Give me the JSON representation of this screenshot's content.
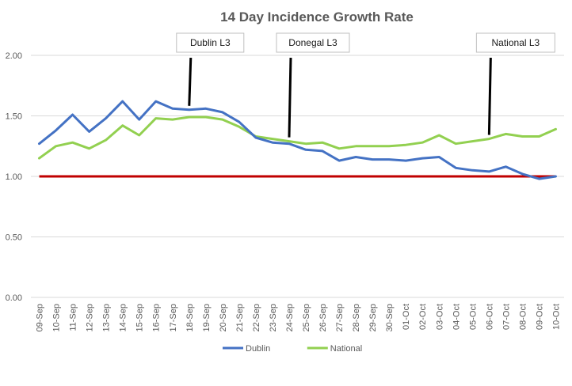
{
  "chart_data": {
    "type": "line",
    "title": "14 Day Incidence Growth Rate",
    "categories": [
      "09-Sep",
      "10-Sep",
      "11-Sep",
      "12-Sep",
      "13-Sep",
      "14-Sep",
      "15-Sep",
      "16-Sep",
      "17-Sep",
      "18-Sep",
      "19-Sep",
      "20-Sep",
      "21-Sep",
      "22-Sep",
      "23-Sep",
      "24-Sep",
      "25-Sep",
      "26-Sep",
      "27-Sep",
      "28-Sep",
      "29-Sep",
      "30-Sep",
      "01-Oct",
      "02-Oct",
      "03-Oct",
      "04-Oct",
      "05-Oct",
      "06-Oct",
      "07-Oct",
      "08-Oct",
      "09-Oct",
      "10-Oct"
    ],
    "series": [
      {
        "name": "Dublin",
        "color": "#4472c4",
        "values": [
          1.27,
          1.38,
          1.51,
          1.37,
          1.48,
          1.62,
          1.47,
          1.62,
          1.56,
          1.55,
          1.56,
          1.53,
          1.45,
          1.32,
          1.28,
          1.27,
          1.22,
          1.21,
          1.13,
          1.16,
          1.14,
          1.14,
          1.13,
          1.15,
          1.16,
          1.07,
          1.05,
          1.04,
          1.08,
          1.02,
          0.98,
          1.0
        ]
      },
      {
        "name": "National",
        "color": "#92d050",
        "values": [
          1.15,
          1.25,
          1.28,
          1.23,
          1.3,
          1.42,
          1.34,
          1.48,
          1.47,
          1.49,
          1.49,
          1.47,
          1.41,
          1.33,
          1.31,
          1.29,
          1.27,
          1.28,
          1.23,
          1.25,
          1.25,
          1.25,
          1.26,
          1.28,
          1.34,
          1.27,
          1.29,
          1.31,
          1.35,
          1.33,
          1.33,
          1.39
        ]
      }
    ],
    "reference_line": {
      "value": 1.0,
      "color": "#c00000"
    },
    "yticks": [
      "0.00",
      "0.50",
      "1.00",
      "1.50",
      "2.00"
    ],
    "ylim": [
      0,
      2.0
    ],
    "grid": true,
    "legend_position": "bottom",
    "annotations": [
      {
        "label": "Dublin L3",
        "category": "18-Sep"
      },
      {
        "label": "Donegal L3",
        "category": "24-Sep"
      },
      {
        "label": "National L3",
        "category": "06-Oct"
      }
    ]
  }
}
